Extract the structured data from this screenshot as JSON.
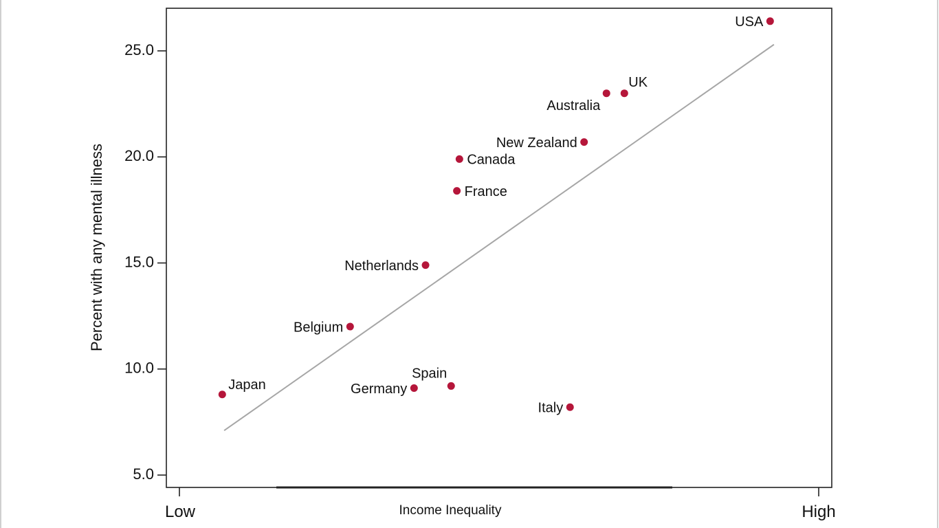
{
  "chart_data": {
    "type": "scatter",
    "title": "",
    "xlabel": "Income Inequality",
    "ylabel": "Percent with any mental illness",
    "x_end_labels": {
      "low": "Low",
      "high": "High"
    },
    "x_scale": "ordinal (no numeric ticks; 0 = Low, 1 = High)",
    "ylim": [
      4.4,
      27.1
    ],
    "yticks": [
      "5.0",
      "10.0",
      "15.0",
      "20.0",
      "25.0"
    ],
    "ytick_values": [
      5,
      10,
      15,
      20,
      25
    ],
    "grid": false,
    "legend": "none",
    "point_color": "#b5163a",
    "fit_line_color": "#a6a6a6",
    "fit_line": {
      "x": [
        0.07,
        0.93
      ],
      "y": [
        7.1,
        25.3
      ]
    },
    "points": [
      {
        "name": "Japan",
        "x": 0.067,
        "y": 8.8
      },
      {
        "name": "Belgium",
        "x": 0.267,
        "y": 12.0
      },
      {
        "name": "Netherlands",
        "x": 0.385,
        "y": 14.9
      },
      {
        "name": "Germany",
        "x": 0.367,
        "y": 9.1
      },
      {
        "name": "Spain",
        "x": 0.425,
        "y": 9.2
      },
      {
        "name": "France",
        "x": 0.434,
        "y": 18.4
      },
      {
        "name": "Canada",
        "x": 0.438,
        "y": 19.9
      },
      {
        "name": "Italy",
        "x": 0.611,
        "y": 8.2
      },
      {
        "name": "New Zealand",
        "x": 0.633,
        "y": 20.7
      },
      {
        "name": "Australia",
        "x": 0.668,
        "y": 23.0
      },
      {
        "name": "UK",
        "x": 0.696,
        "y": 23.0
      },
      {
        "name": "USA",
        "x": 0.924,
        "y": 26.4
      }
    ]
  }
}
